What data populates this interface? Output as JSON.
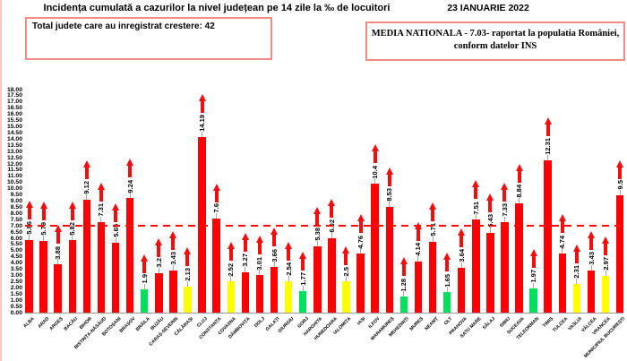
{
  "header": {
    "title": "Incidența cumulată a cazurilor la nivel județean pe 14 zile la ‰ de locuitori",
    "date": "23 IANUARIE 2022",
    "growth_box": "Total judete care au inregistrat crestere: 42",
    "national_box_line1": "MEDIA NATIONALA - 7.03-  raportat la populatia României,",
    "national_box_line2": "conform datelor INS"
  },
  "colors": {
    "red": "#fe0000",
    "yellow": "#ffff00",
    "green": "#00e05c",
    "arrow": "#f40d0d",
    "average_line": "#fc0d0d",
    "box_border": "#ef8b80",
    "leader": "#a6a6a6",
    "text": "#000000"
  },
  "chart_data": {
    "type": "bar",
    "title": "Incidența cumulată a cazurilor la nivel județean pe 14 zile la ‰ de locuitori",
    "date": "23 IANUARIE 2022",
    "xlabel": "",
    "ylabel": "",
    "ylim": [
      0,
      18
    ],
    "ytick_step": 0.5,
    "ytick_format": "two_decimals",
    "grid": false,
    "legend": "none",
    "national_average": 7.03,
    "annotations": {
      "dashed_line": "red dashed horizontal line at national average 7.03",
      "arrows": "red upward arrow above every bar (all 42 counties increasing)"
    },
    "categories": [
      "ALBA",
      "ARAD",
      "ARGEȘ",
      "BACĂU",
      "BIHOR",
      "BISTRIȚA-NĂSĂUD",
      "BOTOȘANI",
      "BRAȘOV",
      "BRĂILA",
      "BUZĂU",
      "CARAȘ-SEVERIN",
      "CĂLĂRAȘI",
      "CLUJ",
      "CONSTANȚA",
      "COVASNA",
      "DÂMBOVIȚA",
      "DOLJ",
      "GALAȚI",
      "GIURGIU",
      "GORJ",
      "HARGHITA",
      "HUNEDOARA",
      "IALOMIȚA",
      "IAȘI",
      "ILFOV",
      "MARAMUREȘ",
      "MEHEDINȚI",
      "MUREȘ",
      "NEAMȚ",
      "OLT",
      "PRAHOVA",
      "SATU MARE",
      "SĂLAJ",
      "SIBIU",
      "SUCEAVA",
      "TELEORMAN",
      "TIMIȘ",
      "TULCEA",
      "VASLUI",
      "VÂLCEA",
      "VRANCEA",
      "MUNICIPIUL BUCUREȘTI"
    ],
    "values": [
      5.86,
      5.79,
      3.88,
      5.82,
      9.12,
      7.31,
      5.65,
      9.24,
      1.9,
      3.2,
      3.43,
      2.13,
      14.19,
      7.6,
      2.52,
      3.27,
      3.01,
      3.66,
      2.54,
      1.77,
      5.38,
      6.02,
      2.5,
      4.76,
      10.4,
      8.53,
      1.28,
      4.14,
      5.71,
      1.65,
      3.64,
      7.51,
      6.43,
      7.33,
      8.84,
      1.97,
      12.31,
      4.74,
      2.31,
      3.43,
      2.97,
      9.5
    ],
    "value_labels": [
      "5.86",
      "5.79",
      "3.88",
      "5.82",
      "9.12",
      "7.31",
      "5.65",
      "9.24",
      "1.9",
      "3.2",
      "3.43",
      "2.13",
      "14.19",
      "7.6",
      "2.52",
      "3.27",
      "3.01",
      "3.66",
      "2.54",
      "1.77",
      "5.38",
      "6.02",
      "2.5",
      "4.76",
      "10.4",
      "8.53",
      "1.28",
      "4.14",
      "5.71",
      "1.65",
      "3.64",
      "7.51",
      "6.43",
      "7.33",
      "8.84",
      "1.97",
      "12.31",
      "4.74",
      "2.31",
      "3.43",
      "2.97",
      "9.5"
    ],
    "bar_colors": [
      "red",
      "red",
      "red",
      "red",
      "red",
      "red",
      "red",
      "red",
      "green",
      "red",
      "red",
      "yellow",
      "red",
      "red",
      "yellow",
      "red",
      "red",
      "red",
      "yellow",
      "green",
      "red",
      "red",
      "yellow",
      "red",
      "red",
      "red",
      "green",
      "red",
      "red",
      "green",
      "red",
      "red",
      "red",
      "red",
      "red",
      "green",
      "red",
      "red",
      "yellow",
      "red",
      "yellow",
      "red"
    ]
  }
}
